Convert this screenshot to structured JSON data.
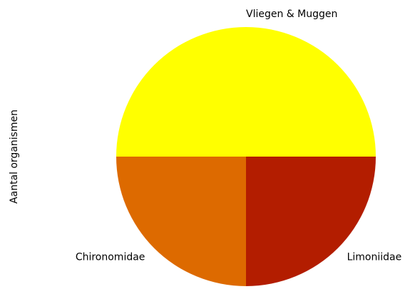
{
  "chart_data": {
    "type": "pie",
    "ylabel": "Aantal organismen",
    "categories": [
      "Vliegen & Muggen",
      "Chironomidae",
      "Limoniidae"
    ],
    "values": [
      50,
      25,
      25
    ],
    "colors": [
      "#ffff00",
      "#dd6a00",
      "#b31d00"
    ],
    "startangle": 0
  }
}
